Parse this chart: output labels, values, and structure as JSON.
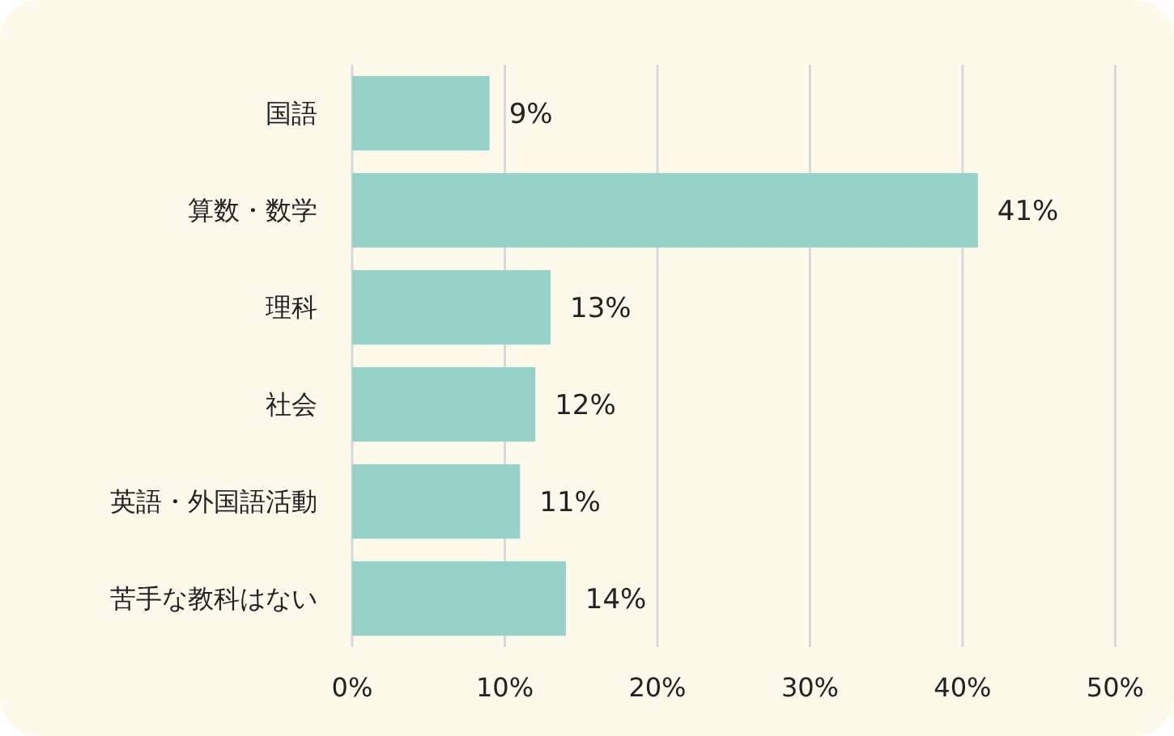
{
  "chart_data": {
    "type": "bar",
    "orientation": "horizontal",
    "categories": [
      "国語",
      "算数・数学",
      "理科",
      "社会",
      "英語・外国語活動",
      "苦手な教科はない"
    ],
    "values": [
      9,
      41,
      13,
      12,
      11,
      14
    ],
    "value_labels": [
      "9%",
      "41%",
      "13%",
      "12%",
      "11%",
      "14%"
    ],
    "color": "#96d1ca",
    "xlim": [
      0,
      50
    ],
    "xticks": [
      {
        "value": 0,
        "label": "0%"
      },
      {
        "value": 10,
        "label": "10%"
      },
      {
        "value": 20,
        "label": "20%"
      },
      {
        "value": 30,
        "label": "30%"
      },
      {
        "value": 40,
        "label": "40%"
      },
      {
        "value": 50,
        "label": "50%"
      }
    ],
    "grid": "x"
  }
}
